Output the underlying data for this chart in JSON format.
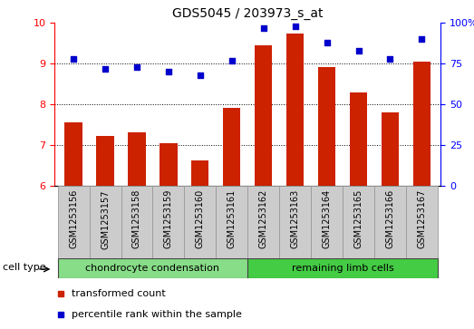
{
  "title": "GDS5045 / 203973_s_at",
  "samples": [
    "GSM1253156",
    "GSM1253157",
    "GSM1253158",
    "GSM1253159",
    "GSM1253160",
    "GSM1253161",
    "GSM1253162",
    "GSM1253163",
    "GSM1253164",
    "GSM1253165",
    "GSM1253166",
    "GSM1253167"
  ],
  "bar_values": [
    7.55,
    7.22,
    7.32,
    7.05,
    6.62,
    7.92,
    9.45,
    9.75,
    8.92,
    8.3,
    7.8,
    9.05
  ],
  "percentile_values": [
    78,
    72,
    73,
    70,
    68,
    77,
    97,
    98,
    88,
    83,
    78,
    90
  ],
  "bar_color": "#CC2200",
  "point_color": "#0000CC",
  "ylim_left": [
    6,
    10
  ],
  "ylim_right": [
    0,
    100
  ],
  "yticks_left": [
    6,
    7,
    8,
    9,
    10
  ],
  "yticks_right": [
    0,
    25,
    50,
    75,
    100
  ],
  "ytick_labels_right": [
    "0",
    "25",
    "50",
    "75",
    "100%"
  ],
  "groups": [
    {
      "label": "chondrocyte condensation",
      "indices": [
        0,
        1,
        2,
        3,
        4,
        5
      ],
      "color": "#88DD88"
    },
    {
      "label": "remaining limb cells",
      "indices": [
        6,
        7,
        8,
        9,
        10,
        11
      ],
      "color": "#44CC44"
    }
  ],
  "cell_type_label": "cell type",
  "legend_bar_label": "transformed count",
  "legend_point_label": "percentile rank within the sample",
  "bar_width": 0.55,
  "tick_label_bg": "#CCCCCC",
  "tick_label_border": "#999999"
}
